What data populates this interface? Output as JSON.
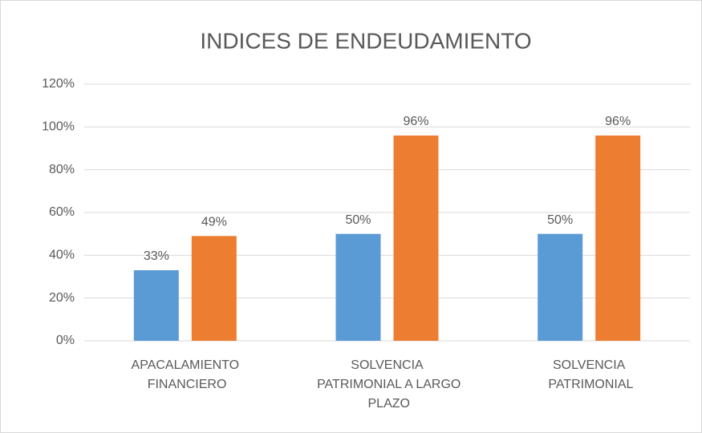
{
  "chart_data": {
    "type": "bar",
    "title": "INDICES DE ENDEUDAMIENTO",
    "categories": [
      "APACALAMIENTO FINANCIERO",
      "SOLVENCIA PATRIMONIAL A LARGO PLAZO",
      "SOLVENCIA PATRIMONIAL"
    ],
    "series": [
      {
        "color": "#5b9bd5",
        "values": [
          33,
          50,
          50
        ],
        "value_labels": [
          "33%",
          "50%",
          "50%"
        ]
      },
      {
        "color": "#ed7d31",
        "values": [
          49,
          96,
          96
        ],
        "value_labels": [
          "49%",
          "96%",
          "96%"
        ]
      }
    ],
    "ylim": [
      0,
      120
    ],
    "yticks": [
      {
        "value": 0,
        "label": "0%"
      },
      {
        "value": 20,
        "label": "20%"
      },
      {
        "value": 40,
        "label": "40%"
      },
      {
        "value": 60,
        "label": "60%"
      },
      {
        "value": 80,
        "label": "80%"
      },
      {
        "value": 100,
        "label": "100%"
      },
      {
        "value": 120,
        "label": "120%"
      }
    ],
    "grid": true
  }
}
